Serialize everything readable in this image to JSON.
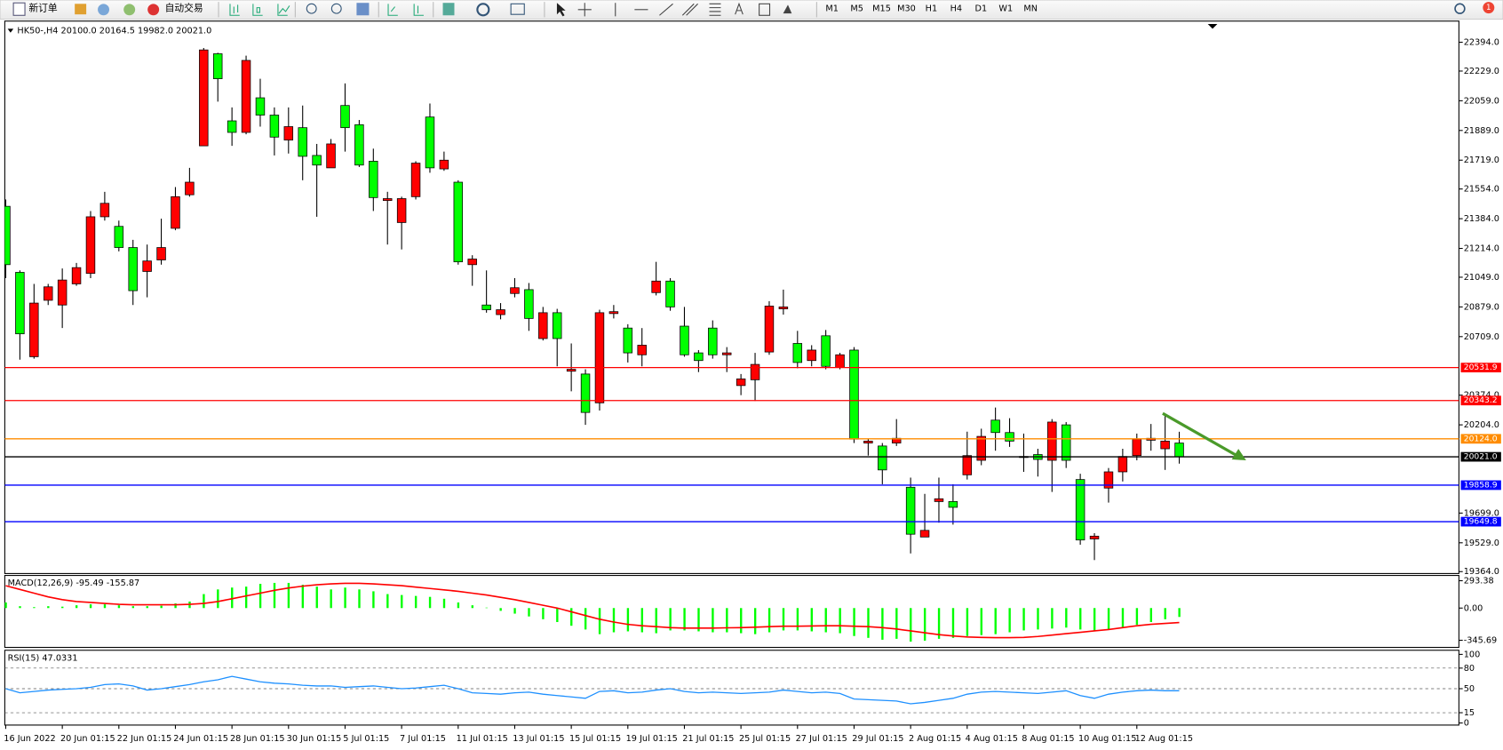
{
  "toolbar": {
    "new_order": "新订单",
    "auto_trading": "自动交易",
    "timeframes": [
      "M1",
      "M5",
      "M15",
      "M30",
      "H1",
      "H4",
      "D1",
      "W1",
      "MN"
    ],
    "notifications": 1
  },
  "chart_data": [
    {
      "type": "candlestick",
      "title": "HK50-,H4  20100.0 20164.5 19982.0 20021.0",
      "categories": [
        "16 Jun 2022",
        null,
        null,
        null,
        "20 Jun 01:15",
        null,
        null,
        null,
        "22 Jun 01:15",
        null,
        null,
        null,
        "24 Jun 01:15",
        null,
        null,
        null,
        "28 Jun 01:15",
        null,
        null,
        null,
        "30 Jun 01:15",
        null,
        null,
        null,
        "5 Jul 01:15",
        null,
        null,
        null,
        "7 Jul 01:15",
        null,
        null,
        null,
        "11 Jul 01:15",
        null,
        null,
        null,
        "13 Jul 01:15",
        null,
        null,
        null,
        "15 Jul 01:15",
        null,
        null,
        null,
        "19 Jul 01:15",
        null,
        null,
        null,
        "21 Jul 01:15",
        null,
        null,
        null,
        "25 Jul 01:15",
        null,
        null,
        null,
        "27 Jul 01:15",
        null,
        null,
        null,
        "29 Jul 01:15",
        null,
        null,
        null,
        "2 Aug 01:15",
        null,
        null,
        null,
        "4 Aug 01:15",
        null,
        null,
        null,
        "8 Aug 01:15",
        null,
        null,
        null,
        "10 Aug 01:15",
        null,
        null,
        null,
        "12 Aug 01:15",
        null,
        null,
        null
      ],
      "open": [
        21455,
        21077,
        20594,
        20917,
        20890,
        21011,
        21071,
        21395,
        21340,
        21219,
        21082,
        21148,
        21329,
        21521,
        21801,
        22328,
        21944,
        21878,
        22076,
        21977,
        21834,
        21905,
        21746,
        21675,
        22032,
        21922,
        21713,
        21488,
        21362,
        21510,
        21966,
        21669,
        21593,
        21121,
        20890,
        20835,
        20956,
        20978,
        20698,
        20846,
        20511,
        20495,
        20330,
        20841,
        20758,
        20605,
        20961,
        21027,
        20769,
        20616,
        20758,
        20605,
        20429,
        20462,
        20621,
        20868,
        20670,
        20572,
        20714,
        20533,
        20632,
        20100,
        20083,
        20100,
        19847,
        19562,
        19765,
        19765,
        19918,
        20001,
        20231,
        20160,
        20017,
        20034,
        20001,
        20204,
        19891,
        19551,
        19842,
        19935,
        20028,
        20116,
        20067,
        20100
      ],
      "high": [
        21494,
        21088,
        21011,
        21011,
        21099,
        21131,
        21428,
        21538,
        21373,
        21263,
        21236,
        21384,
        21565,
        21675,
        22361,
        22334,
        22021,
        22317,
        22185,
        22021,
        22021,
        22032,
        21812,
        21840,
        22158,
        21949,
        21785,
        21538,
        21510,
        21713,
        22043,
        21768,
        21604,
        21175,
        21088,
        20901,
        21044,
        21016,
        20879,
        20868,
        20670,
        20522,
        20863,
        20890,
        20780,
        20758,
        21137,
        21044,
        20879,
        20632,
        20802,
        20649,
        20495,
        20616,
        20912,
        20978,
        20742,
        20660,
        20747,
        20616,
        20649,
        20122,
        20100,
        20237,
        19902,
        19809,
        19902,
        19864,
        20165,
        20182,
        20303,
        20242,
        20154,
        20067,
        20237,
        20220,
        19924,
        19584,
        19957,
        20067,
        20154,
        20209,
        20264,
        20164.5
      ],
      "low": [
        21044,
        20577,
        20583,
        20890,
        20758,
        21000,
        21044,
        21373,
        21197,
        20890,
        20934,
        21121,
        21318,
        21510,
        21801,
        22054,
        21801,
        21867,
        21911,
        21746,
        21757,
        21604,
        21395,
        21675,
        21768,
        21680,
        21428,
        21236,
        21208,
        21494,
        21647,
        21658,
        21121,
        21000,
        20846,
        20808,
        20934,
        20742,
        20687,
        20539,
        20396,
        20204,
        20286,
        20813,
        20561,
        20539,
        20945,
        20857,
        20594,
        20506,
        20583,
        20506,
        20374,
        20341,
        20605,
        20835,
        20528,
        20539,
        20522,
        20522,
        20100,
        20028,
        19864,
        20083,
        19468,
        19562,
        19644,
        19633,
        19891,
        19973,
        20056,
        20078,
        19935,
        19908,
        19820,
        19957,
        19518,
        19430,
        19759,
        19880,
        20001,
        20056,
        19946,
        19982
      ],
      "close": [
        21121,
        20725,
        20901,
        20994,
        21033,
        21104,
        21395,
        21472,
        21219,
        20972,
        21142,
        21219,
        21510,
        21593,
        22350,
        22185,
        21878,
        22290,
        21977,
        21851,
        21911,
        21741,
        21691,
        21812,
        21905,
        21691,
        21505,
        21499,
        21499,
        21702,
        21675,
        21719,
        21137,
        21153,
        20863,
        20863,
        20989,
        20813,
        20846,
        20698,
        20522,
        20275,
        20846,
        20852,
        20616,
        20660,
        21027,
        20879,
        20605,
        20572,
        20605,
        20616,
        20467,
        20550,
        20884,
        20879,
        20561,
        20632,
        20539,
        20605,
        20122,
        20111,
        19946,
        20127,
        19578,
        19600,
        19781,
        19732,
        20028,
        20138,
        20160,
        20111,
        20023,
        20006,
        20220,
        20001,
        19545,
        19567,
        19935,
        20023,
        20122,
        20127,
        20111,
        20021
      ],
      "up_color": "#ff0000",
      "down_color": "#00ff00",
      "ylim": [
        19353,
        22515
      ],
      "yticks": [
        {
          "value": 22394,
          "label": "22394.0"
        },
        {
          "value": 22229,
          "label": "22229.0"
        },
        {
          "value": 22059,
          "label": "22059.0"
        },
        {
          "value": 21889,
          "label": "21889.0"
        },
        {
          "value": 21719,
          "label": "21719.0"
        },
        {
          "value": 21554,
          "label": "21554.0"
        },
        {
          "value": 21384,
          "label": "21384.0"
        },
        {
          "value": 21214,
          "label": "21214.0"
        },
        {
          "value": 21049,
          "label": "21049.0"
        },
        {
          "value": 20879,
          "label": "20879.0"
        },
        {
          "value": 20709,
          "label": "20709.0"
        },
        {
          "value": 20374,
          "label": "20374.0"
        },
        {
          "value": 20204,
          "label": "20204.0"
        },
        {
          "value": 19699,
          "label": "19699.0"
        },
        {
          "value": 19529,
          "label": "19529.0"
        },
        {
          "value": 19364,
          "label": "19364.0"
        }
      ],
      "levels": [
        {
          "value": 20531.9,
          "color": "#ff0000"
        },
        {
          "value": 20343.2,
          "color": "#ff0000"
        },
        {
          "value": {
            "value": 20124,
            "label": "20124.0"
          },
          "color": "#ff8c00"
        },
        {
          "value": {
            "value": 20021,
            "label": "20021.0"
          },
          "color": "#000000"
        },
        {
          "value": 19858.9,
          "color": "#0000ff"
        },
        {
          "value": 19649.8,
          "color": "#0000ff"
        }
      ]
    },
    {
      "type": "macd",
      "title": "MACD(12,26,9) -95.49 -155.87",
      "series": [
        {
          "type": "bar",
          "color": "#00ff00",
          "values": [
            60,
            20,
            10,
            20,
            15,
            30,
            40,
            40,
            30,
            20,
            20,
            25,
            50,
            70,
            150,
            200,
            220,
            230,
            260,
            270,
            270,
            250,
            230,
            200,
            220,
            200,
            180,
            150,
            140,
            130,
            120,
            100,
            60,
            30,
            5,
            -30,
            -60,
            -90,
            -120,
            -150,
            -190,
            -230,
            -280,
            -260,
            -250,
            -260,
            -270,
            -240,
            -240,
            -250,
            -260,
            -260,
            -270,
            -280,
            -260,
            -240,
            -240,
            -250,
            -260,
            -270,
            -300,
            -320,
            -340,
            -330,
            -360,
            -350,
            -330,
            -320,
            -300,
            -290,
            -280,
            -260,
            -240,
            -230,
            -220,
            -210,
            -230,
            -250,
            -230,
            -210,
            -180,
            -150,
            -120,
            -95.49
          ]
        },
        {
          "type": "line",
          "color": "#ff0000",
          "values": [
            240,
            200,
            160,
            120,
            90,
            70,
            60,
            50,
            40,
            35,
            35,
            35,
            35,
            40,
            50,
            70,
            100,
            130,
            160,
            190,
            215,
            235,
            250,
            260,
            265,
            265,
            260,
            250,
            240,
            225,
            210,
            195,
            180,
            160,
            140,
            115,
            90,
            60,
            30,
            0,
            -40,
            -80,
            -120,
            -150,
            -175,
            -190,
            -200,
            -210,
            -215,
            -215,
            -215,
            -212,
            -210,
            -205,
            -200,
            -195,
            -195,
            -192,
            -190,
            -190,
            -195,
            -200,
            -210,
            -225,
            -245,
            -265,
            -285,
            -300,
            -310,
            -315,
            -318,
            -318,
            -315,
            -305,
            -290,
            -275,
            -260,
            -245,
            -230,
            -210,
            -190,
            -175,
            -165,
            -155.87
          ]
        }
      ],
      "ylim": [
        -422,
        350
      ],
      "yticks": [
        {
          "value": 293.38,
          "label": "293.38"
        },
        {
          "value": 0,
          "label": "0.00"
        },
        {
          "value": -345.69,
          "label": "-345.69"
        }
      ]
    },
    {
      "type": "rsi",
      "title": "RSI(15) 47.0331",
      "series": [
        {
          "type": "line",
          "color": "#1e90ff",
          "values": [
            50,
            44,
            46,
            48,
            49,
            50,
            52,
            56,
            57,
            54,
            48,
            50,
            53,
            56,
            60,
            63,
            68,
            64,
            60,
            58,
            57,
            55,
            54,
            54,
            52,
            53,
            54,
            52,
            50,
            51,
            53,
            55,
            50,
            44,
            43,
            42,
            44,
            45,
            42,
            40,
            38,
            36,
            46,
            47,
            44,
            45,
            48,
            50,
            46,
            44,
            45,
            44,
            43,
            44,
            45,
            48,
            46,
            44,
            45,
            43,
            35,
            34,
            33,
            32,
            28,
            30,
            33,
            36,
            42,
            45,
            46,
            45,
            44,
            43,
            45,
            47,
            40,
            36,
            42,
            45,
            47,
            48,
            47,
            47.0331
          ]
        }
      ],
      "ylim": [
        -3,
        106
      ],
      "yticks": [
        100,
        80,
        50,
        15,
        0
      ],
      "levels": [
        80,
        50,
        15
      ]
    }
  ]
}
